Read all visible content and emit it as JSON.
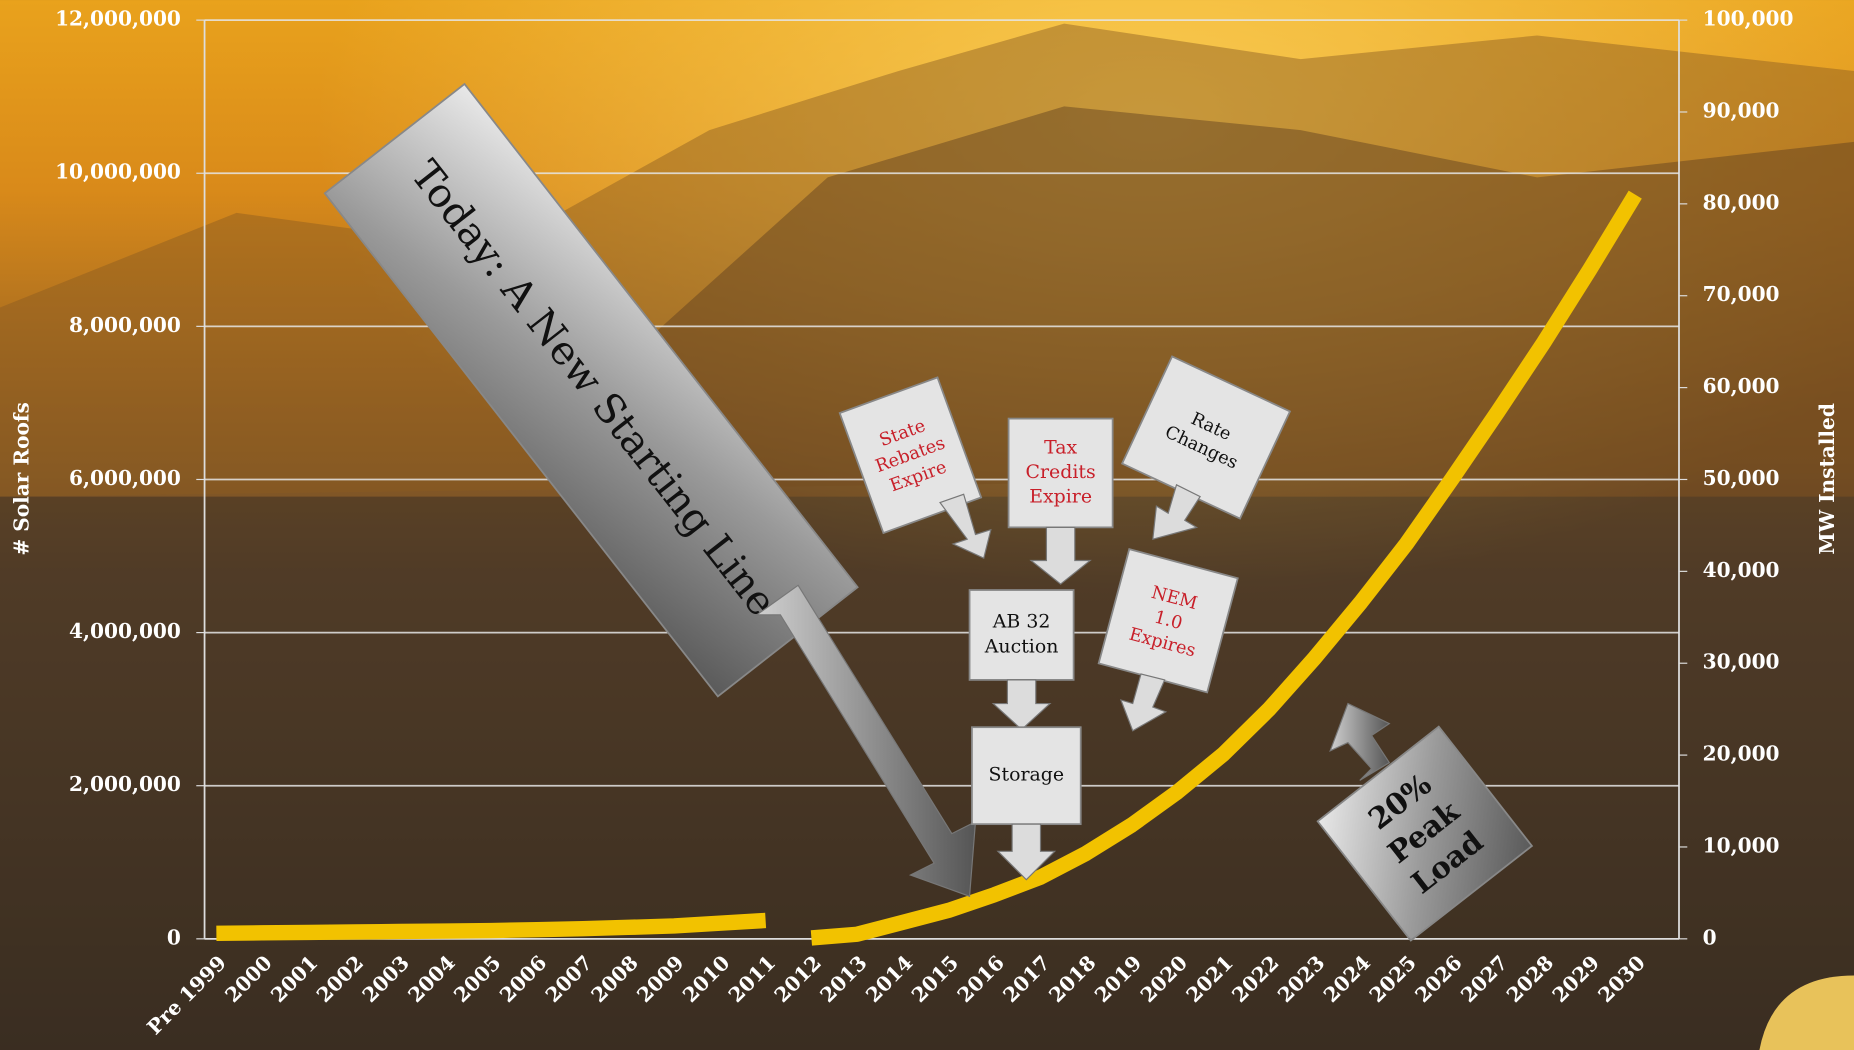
{
  "chart_data": {
    "type": "line",
    "categories": [
      "Pre 1999",
      "2000",
      "2001",
      "2002",
      "2003",
      "2004",
      "2005",
      "2006",
      "2007",
      "2008",
      "2009",
      "2010",
      "2011",
      "2012",
      "2013",
      "2014",
      "2015",
      "2016",
      "2017",
      "2018",
      "2019",
      "2020",
      "2021",
      "2022",
      "2023",
      "2024",
      "2025",
      "2026",
      "2027",
      "2028",
      "2029",
      "2030"
    ],
    "series": [
      {
        "color": "#f2c200",
        "axis": "y2",
        "values": [
          600,
          650,
          700,
          750,
          800,
          850,
          900,
          1000,
          1100,
          1250,
          1400,
          1700,
          2000,
          null,
          null,
          null,
          null,
          null,
          null,
          null,
          null,
          null,
          null,
          null,
          null,
          null,
          null,
          null,
          null,
          null,
          null,
          null
        ]
      },
      {
        "color": "#f2c200",
        "axis": "y2",
        "values": [
          null,
          null,
          null,
          null,
          null,
          null,
          null,
          null,
          null,
          null,
          null,
          null,
          null,
          100,
          500,
          1800,
          3100,
          4800,
          6700,
          9300,
          12400,
          16000,
          20100,
          25000,
          30600,
          36600,
          43000,
          50100,
          57400,
          64900,
          72800,
          81000
        ]
      }
    ],
    "ylabel": "# Solar Roofs",
    "y2label": "MW Installed",
    "ylim": [
      0,
      12000000
    ],
    "yticks": [
      0,
      {
        "value": 2000000,
        "label": "2,000,000"
      },
      {
        "value": 4000000,
        "label": "4,000,000"
      },
      {
        "value": 6000000,
        "label": "6,000,000"
      },
      {
        "value": 8000000,
        "label": "8,000,000"
      },
      {
        "value": 10000000,
        "label": "10,000,000"
      },
      {
        "value": 12000000,
        "label": "12,000,000"
      }
    ],
    "y2lim": [
      0,
      100000
    ],
    "y2ticks": [
      0,
      {
        "value": 10000,
        "label": "10,000"
      },
      {
        "value": 20000,
        "label": "20,000"
      },
      {
        "value": 30000,
        "label": "30,000"
      },
      {
        "value": 40000,
        "label": "40,000"
      },
      {
        "value": 50000,
        "label": "50,000"
      },
      {
        "value": 60000,
        "label": "60,000"
      },
      {
        "value": 70000,
        "label": "70,000"
      },
      {
        "value": 80000,
        "label": "80,000"
      },
      {
        "value": 90000,
        "label": "90,000"
      },
      {
        "value": 100000,
        "label": "100,000"
      }
    ],
    "grid": true,
    "annotations": [
      {
        "lines": [
          "Today: A New Starting Line"
        ]
      },
      {
        "lines": [
          "State",
          "Rebates",
          "Expire"
        ]
      },
      {
        "lines": [
          "Tax",
          "Credits",
          "Expire"
        ]
      },
      {
        "lines": [
          "Rate",
          "Changes"
        ]
      },
      {
        "lines": [
          "AB 32",
          "Auction"
        ]
      },
      {
        "lines": [
          "Storage"
        ]
      },
      {
        "lines": [
          "NEM",
          "1.0",
          "Expires"
        ]
      },
      {
        "lines": [
          "20%",
          "Peak",
          "Load"
        ]
      }
    ]
  }
}
